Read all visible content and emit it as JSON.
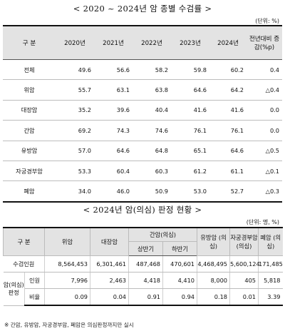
{
  "table1": {
    "title": "< 2020 ~ 2024년 암 종별 수검률 >",
    "unit": "(단위: %)",
    "headers": [
      "구 분",
      "2020년",
      "2021년",
      "2022년",
      "2023년",
      "2024년",
      "전년대비 증감(%p)"
    ],
    "rows": [
      {
        "label": "전체",
        "values": [
          "49.6",
          "56.6",
          "58.2",
          "59.8",
          "60.2",
          "0.4"
        ]
      },
      {
        "label": "위암",
        "values": [
          "55.7",
          "63.1",
          "63.8",
          "64.6",
          "64.2",
          "△0.4"
        ]
      },
      {
        "label": "대장암",
        "values": [
          "35.2",
          "39.6",
          "40.4",
          "41.6",
          "41.6",
          "0.0"
        ]
      },
      {
        "label": "간암",
        "values": [
          "69.2",
          "74.3",
          "74.6",
          "76.1",
          "76.1",
          "0.0"
        ]
      },
      {
        "label": "유방암",
        "values": [
          "57.0",
          "64.6",
          "64.8",
          "65.1",
          "64.6",
          "△0.5"
        ]
      },
      {
        "label": "자궁경부암",
        "values": [
          "53.3",
          "60.4",
          "60.3",
          "61.2",
          "61.1",
          "△0.1"
        ]
      },
      {
        "label": "폐암",
        "values": [
          "34.0",
          "46.0",
          "50.9",
          "53.0",
          "52.7",
          "△0.3"
        ]
      }
    ]
  },
  "table2": {
    "title": "< 2024년 암(의심) 판정 현황 >",
    "unit": "(단위: 명, %)",
    "headers": {
      "group": "구 분",
      "stomach": "위암",
      "colorectal": "대장암",
      "liver": "간암(의심)",
      "liver_h1": "상반기",
      "liver_h2": "하반기",
      "breast": "유방암 (의심)",
      "cervical": "자궁경부암 (의심)",
      "lung": "폐암 (의심)"
    },
    "examinees": {
      "label": "수검인원",
      "values": [
        "8,564,453",
        "6,301,461",
        "487,468",
        "470,601",
        "4,468,495",
        "5,600,124",
        "171,485"
      ]
    },
    "judged_label": "암(의심) 판정",
    "count": {
      "label": "인원",
      "values": [
        "7,996",
        "2,463",
        "4,418",
        "4,410",
        "8,000",
        "405",
        "5,818"
      ]
    },
    "ratio": {
      "label": "비율",
      "values": [
        "0.09",
        "0.04",
        "0.91",
        "0.94",
        "0.18",
        "0.01",
        "3.39"
      ]
    }
  },
  "footnote": "※ 간암, 유방암, 자궁경부암, 폐암은 의심판정까지만 실시"
}
